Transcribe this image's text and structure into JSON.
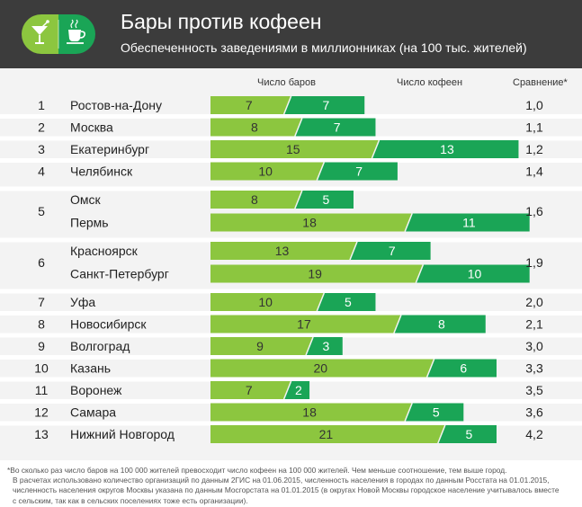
{
  "header": {
    "title": "Бары против кофеен",
    "subtitle": "Обеспеченность заведениями в миллионниках (на 100 тыс. жителей)",
    "logo_icons": [
      "cocktail-glass-icon",
      "coffee-cup-icon"
    ]
  },
  "colors": {
    "header_bg": "#3c3c3c",
    "bars_color": "#8cc63f",
    "cafes_color": "#1aa556",
    "panel_bg": "#f3f3f3"
  },
  "chart_data": {
    "type": "bar",
    "columns": {
      "bars": "Число баров",
      "cafes": "Число кофеен",
      "ratio": "Сравнение*"
    },
    "series": [
      {
        "name": "Число баров",
        "values": [
          7,
          8,
          15,
          10,
          8,
          18,
          13,
          19,
          10,
          17,
          9,
          20,
          7,
          18,
          21
        ]
      },
      {
        "name": "Число кофеен",
        "values": [
          7,
          7,
          13,
          7,
          5,
          11,
          7,
          10,
          5,
          8,
          3,
          6,
          2,
          5,
          5
        ]
      }
    ],
    "groups": [
      {
        "rank": "1",
        "ratio": "1,0",
        "cities": [
          {
            "name": "Ростов-на-Дону",
            "bars": 7,
            "cafes": 7
          }
        ]
      },
      {
        "rank": "2",
        "ratio": "1,1",
        "cities": [
          {
            "name": "Москва",
            "bars": 8,
            "cafes": 7
          }
        ]
      },
      {
        "rank": "3",
        "ratio": "1,2",
        "cities": [
          {
            "name": "Екатеринбург",
            "bars": 15,
            "cafes": 13
          }
        ]
      },
      {
        "rank": "4",
        "ratio": "1,4",
        "cities": [
          {
            "name": "Челябинск",
            "bars": 10,
            "cafes": 7
          }
        ]
      },
      {
        "rank": "5",
        "ratio": "1,6",
        "cities": [
          {
            "name": "Омск",
            "bars": 8,
            "cafes": 5
          },
          {
            "name": "Пермь",
            "bars": 18,
            "cafes": 11
          }
        ]
      },
      {
        "rank": "6",
        "ratio": "1,9",
        "cities": [
          {
            "name": "Красноярск",
            "bars": 13,
            "cafes": 7
          },
          {
            "name": "Санкт-Петербург",
            "bars": 19,
            "cafes": 10
          }
        ]
      },
      {
        "rank": "7",
        "ratio": "2,0",
        "cities": [
          {
            "name": "Уфа",
            "bars": 10,
            "cafes": 5
          }
        ]
      },
      {
        "rank": "8",
        "ratio": "2,1",
        "cities": [
          {
            "name": "Новосибирск",
            "bars": 17,
            "cafes": 8
          }
        ]
      },
      {
        "rank": "9",
        "ratio": "3,0",
        "cities": [
          {
            "name": "Волгоград",
            "bars": 9,
            "cafes": 3
          }
        ]
      },
      {
        "rank": "10",
        "ratio": "3,3",
        "cities": [
          {
            "name": "Казань",
            "bars": 20,
            "cafes": 6
          }
        ]
      },
      {
        "rank": "11",
        "ratio": "3,5",
        "cities": [
          {
            "name": "Воронеж",
            "bars": 7,
            "cafes": 2
          }
        ]
      },
      {
        "rank": "12",
        "ratio": "3,6",
        "cities": [
          {
            "name": "Самара",
            "bars": 18,
            "cafes": 5
          }
        ]
      },
      {
        "rank": "13",
        "ratio": "4,2",
        "cities": [
          {
            "name": "Нижний Новгород",
            "bars": 21,
            "cafes": 5
          }
        ]
      }
    ]
  },
  "footnote": {
    "line1": "*Во сколько раз число баров на 100 000 жителей превосходит число кофеен на 100 000 жителей. Чем меньше соотношение, тем выше город.",
    "line2": "В расчетах использовано количество организаций по данным 2ГИС на 01.06.2015, численность населения в городах по данным Росстата на 01.01.2015,",
    "line3": "численность населения округов Москвы указана по данным Мосгорстата на 01.01.2015 (в округах Новой Москвы городское население учитывалось вместе",
    "line4": "с сельским, так как в сельских поселениях тоже есть организации)."
  }
}
